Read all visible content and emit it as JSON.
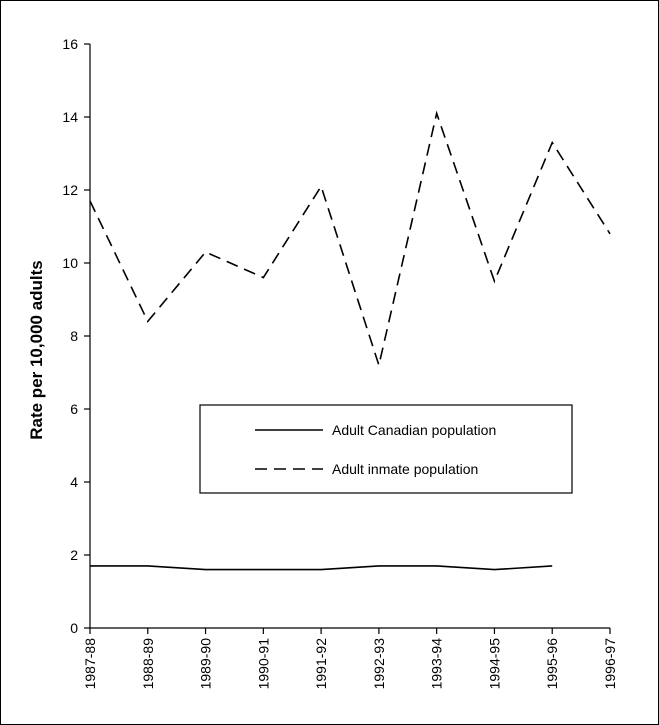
{
  "chart_data": {
    "type": "line",
    "title": "",
    "xlabel": "",
    "ylabel": "Rate per 10,000 adults",
    "ylim": [
      0,
      16
    ],
    "yticks": [
      0,
      2,
      4,
      6,
      8,
      10,
      12,
      14,
      16
    ],
    "categories": [
      "1987-88",
      "1988-89",
      "1989-90",
      "1990-91",
      "1991-92",
      "1992-93",
      "1993-94",
      "1994-95",
      "1995-96",
      "1996-97"
    ],
    "grid": false,
    "legend_position": "center",
    "series": [
      {
        "name": "Adult Canadian population",
        "style": "solid",
        "color": "#000000",
        "values": [
          1.7,
          1.7,
          1.6,
          1.6,
          1.6,
          1.7,
          1.7,
          1.6,
          1.7,
          null
        ]
      },
      {
        "name": "Adult inmate population",
        "style": "dashed",
        "color": "#000000",
        "values": [
          11.7,
          8.4,
          10.3,
          9.6,
          12.1,
          7.2,
          14.1,
          9.5,
          13.3,
          10.8
        ]
      }
    ]
  }
}
